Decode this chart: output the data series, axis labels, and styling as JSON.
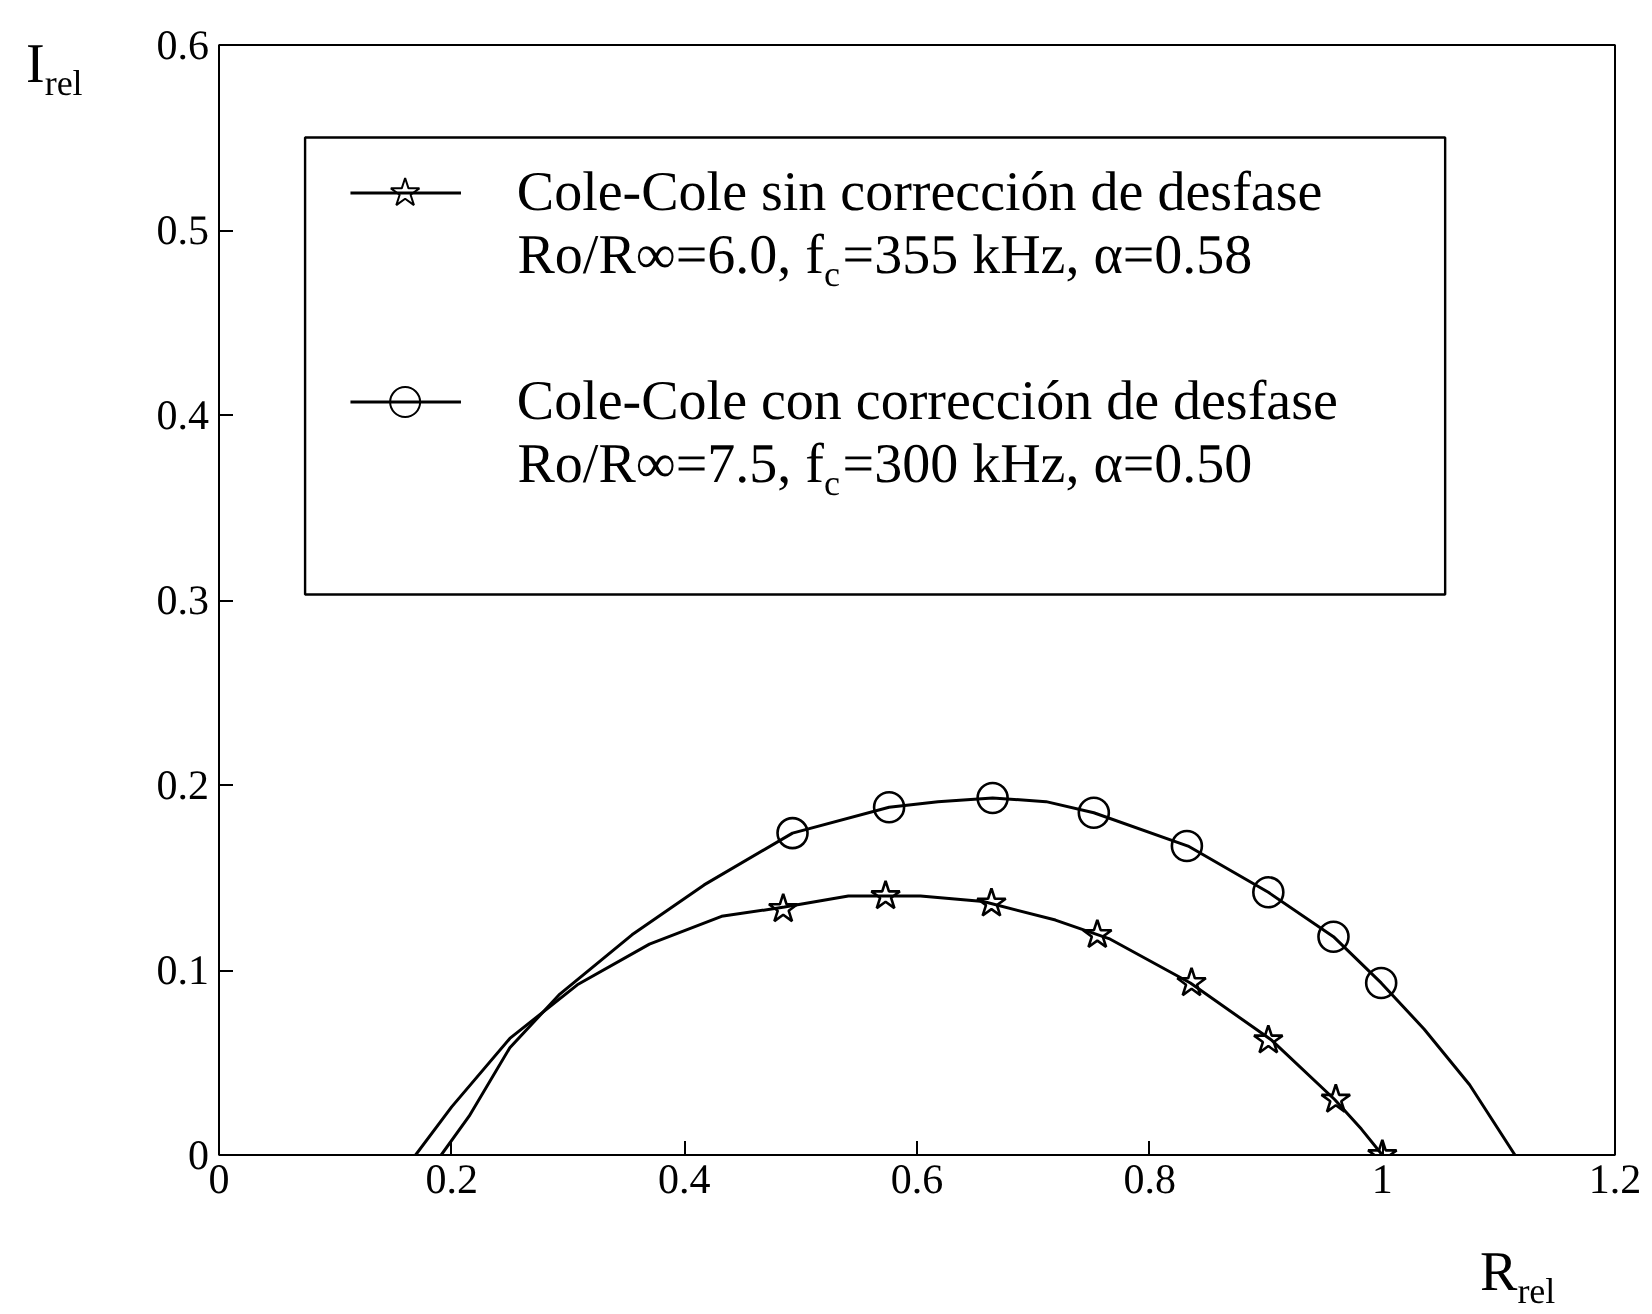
{
  "chart_data": {
    "type": "line",
    "xlabel": "R$_{rel}$",
    "ylabel": "I$_{rel}$",
    "xlim": [
      0,
      1.2
    ],
    "ylim": [
      0,
      0.6
    ],
    "xticks": [
      0,
      0.2,
      0.4,
      0.6,
      0.8,
      1,
      1.2
    ],
    "yticks": [
      0,
      0.1,
      0.2,
      0.3,
      0.4,
      0.5,
      0.6
    ],
    "grid": false,
    "legend": "top left",
    "series": [
      {
        "name": "Cole-Cole sin corrección de desfase\nRo/R∞=6.0, f$_{c}$=355 kHz, α=0.58",
        "color": "#000000",
        "marker": "none",
        "line_style": "solid",
        "x": [
          0.169,
          0.2,
          0.25,
          0.308,
          0.37,
          0.432,
          0.486,
          0.541,
          0.603,
          0.657,
          0.719,
          0.765,
          0.835,
          0.905,
          0.959,
          0.982,
          1.0
        ],
        "values": [
          0,
          0.026,
          0.063,
          0.092,
          0.114,
          0.129,
          0.134,
          0.14,
          0.14,
          0.137,
          0.127,
          0.117,
          0.093,
          0.062,
          0.03,
          0.014,
          0
        ]
      },
      {
        "color": "#000000",
        "type": "scatter",
        "marker": "star",
        "x": [
          0.485,
          0.573,
          0.664,
          0.755,
          0.836,
          0.902,
          0.96,
          1.0
        ],
        "values": [
          0.133,
          0.14,
          0.136,
          0.119,
          0.093,
          0.062,
          0.03,
          0.0
        ]
      },
      {
        "name": "Cole-Cole con corrección de desfase\nRo/R∞=7.5, f$_{c}$=300 kHz, α=0.50",
        "color": "#000000",
        "marker": "none",
        "line_style": "solid",
        "x": [
          0.191,
          0.215,
          0.25,
          0.293,
          0.355,
          0.417,
          0.493,
          0.576,
          0.618,
          0.665,
          0.711,
          0.752,
          0.833,
          0.902,
          0.958,
          0.999,
          1.036,
          1.075,
          1.114
        ],
        "values": [
          0,
          0.021,
          0.058,
          0.087,
          0.119,
          0.146,
          0.174,
          0.188,
          0.191,
          0.193,
          0.191,
          0.185,
          0.167,
          0.142,
          0.118,
          0.093,
          0.068,
          0.038,
          0
        ]
      },
      {
        "color": "#000000",
        "type": "scatter",
        "marker": "circle",
        "x": [
          0.493,
          0.576,
          0.665,
          0.752,
          0.832,
          0.902,
          0.958,
          0.999
        ],
        "values": [
          0.174,
          0.188,
          0.193,
          0.185,
          0.167,
          0.142,
          0.118,
          0.093
        ]
      }
    ]
  }
}
